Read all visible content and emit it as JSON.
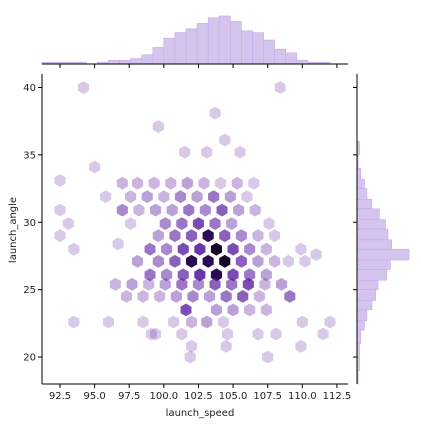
{
  "chart_data": {
    "type": "hexbin-jointplot",
    "xlabel": "launch_speed",
    "ylabel": "launch_angle",
    "xlim": [
      91.2,
      113.3
    ],
    "ylim": [
      18.0,
      41.0
    ],
    "xticks": [
      "92.5",
      "95.0",
      "97.5",
      "100.0",
      "102.5",
      "105.0",
      "107.5",
      "110.0",
      "112.5"
    ],
    "xtick_values": [
      92.5,
      95.0,
      97.5,
      100.0,
      102.5,
      105.0,
      107.5,
      110.0,
      112.5
    ],
    "yticks": [
      "20",
      "25",
      "30",
      "35",
      "40"
    ],
    "ytick_values": [
      20,
      25,
      30,
      35,
      40
    ],
    "colors": {
      "base": "#5a1fa0",
      "hist": "#d5c4ee",
      "hist_edge": "#c2acea",
      "axis": "#000000"
    },
    "hexbins": {
      "gridsize_x_step": 1.19,
      "row_step_y": 1.0,
      "max_count": 10,
      "cells": [
        [
          94.2,
          40.0,
          1
        ],
        [
          103.7,
          38.1,
          1
        ],
        [
          108.4,
          40.0,
          1
        ],
        [
          99.6,
          37.1,
          1
        ],
        [
          104.4,
          36.1,
          1
        ],
        [
          92.5,
          33.1,
          1
        ],
        [
          95.0,
          34.1,
          1
        ],
        [
          101.5,
          35.2,
          1
        ],
        [
          103.1,
          35.2,
          1
        ],
        [
          105.5,
          35.2,
          1
        ],
        [
          97.0,
          32.9,
          2
        ],
        [
          98.1,
          32.9,
          2
        ],
        [
          99.3,
          32.9,
          2
        ],
        [
          100.5,
          32.9,
          2
        ],
        [
          101.7,
          32.9,
          3
        ],
        [
          102.9,
          32.9,
          2
        ],
        [
          104.1,
          32.9,
          1
        ],
        [
          105.3,
          32.9,
          2
        ],
        [
          106.5,
          32.9,
          1
        ],
        [
          95.8,
          31.9,
          1
        ],
        [
          97.6,
          31.9,
          2
        ],
        [
          98.8,
          31.9,
          3
        ],
        [
          100.0,
          31.9,
          2
        ],
        [
          101.2,
          31.9,
          4
        ],
        [
          102.4,
          31.9,
          3
        ],
        [
          103.6,
          31.9,
          5
        ],
        [
          104.8,
          31.9,
          3
        ],
        [
          106.0,
          31.9,
          1
        ],
        [
          92.5,
          30.9,
          1
        ],
        [
          97.0,
          30.9,
          4
        ],
        [
          98.2,
          30.9,
          2
        ],
        [
          99.4,
          30.9,
          3
        ],
        [
          100.6,
          30.9,
          3
        ],
        [
          101.8,
          30.9,
          5
        ],
        [
          103.0,
          30.9,
          4
        ],
        [
          104.2,
          30.9,
          6
        ],
        [
          105.4,
          30.9,
          3
        ],
        [
          106.6,
          30.9,
          2
        ],
        [
          93.1,
          29.9,
          1
        ],
        [
          97.6,
          29.9,
          1
        ],
        [
          100.1,
          29.9,
          4
        ],
        [
          101.3,
          29.9,
          5
        ],
        [
          102.5,
          29.9,
          7
        ],
        [
          103.7,
          29.9,
          5
        ],
        [
          104.9,
          29.9,
          3
        ],
        [
          107.6,
          29.9,
          1
        ],
        [
          92.5,
          29.0,
          1
        ],
        [
          99.6,
          29.0,
          3
        ],
        [
          100.8,
          29.0,
          5
        ],
        [
          102.0,
          29.0,
          6
        ],
        [
          103.2,
          29.0,
          9
        ],
        [
          104.4,
          29.0,
          6
        ],
        [
          105.6,
          29.0,
          4
        ],
        [
          106.8,
          29.0,
          2
        ],
        [
          108.0,
          29.0,
          1
        ],
        [
          93.5,
          28.0,
          1
        ],
        [
          96.7,
          28.4,
          1
        ],
        [
          99.0,
          28.0,
          5
        ],
        [
          100.2,
          28.0,
          4
        ],
        [
          101.4,
          28.0,
          7
        ],
        [
          102.6,
          28.0,
          8
        ],
        [
          103.8,
          28.0,
          10
        ],
        [
          105.0,
          28.0,
          7
        ],
        [
          106.2,
          28.0,
          4
        ],
        [
          107.4,
          28.0,
          2
        ],
        [
          109.9,
          28.0,
          1
        ],
        [
          98.1,
          27.1,
          3
        ],
        [
          99.6,
          27.1,
          4
        ],
        [
          100.8,
          27.1,
          6
        ],
        [
          102.0,
          27.1,
          9
        ],
        [
          103.2,
          27.1,
          9
        ],
        [
          104.4,
          27.1,
          10
        ],
        [
          105.6,
          27.1,
          6
        ],
        [
          106.8,
          27.1,
          3
        ],
        [
          108.0,
          27.1,
          2
        ],
        [
          110.2,
          27.1,
          1
        ],
        [
          111.0,
          27.6,
          1
        ],
        [
          109.0,
          27.1,
          1
        ],
        [
          99.0,
          26.1,
          5
        ],
        [
          100.2,
          26.1,
          4
        ],
        [
          101.4,
          26.1,
          6
        ],
        [
          102.6,
          26.1,
          8
        ],
        [
          103.8,
          26.1,
          9
        ],
        [
          105.0,
          26.1,
          7
        ],
        [
          106.2,
          26.1,
          5
        ],
        [
          107.4,
          26.1,
          3
        ],
        [
          96.5,
          25.4,
          2
        ],
        [
          97.7,
          25.4,
          3
        ],
        [
          98.9,
          25.4,
          2
        ],
        [
          100.1,
          25.4,
          3
        ],
        [
          101.3,
          25.4,
          5
        ],
        [
          102.5,
          25.4,
          4
        ],
        [
          103.7,
          25.4,
          6
        ],
        [
          104.9,
          25.4,
          5
        ],
        [
          106.1,
          25.4,
          7
        ],
        [
          107.3,
          25.4,
          2
        ],
        [
          108.5,
          25.4,
          3
        ],
        [
          97.3,
          24.5,
          2
        ],
        [
          98.5,
          24.5,
          2
        ],
        [
          99.7,
          24.5,
          2
        ],
        [
          100.9,
          24.5,
          3
        ],
        [
          102.1,
          24.5,
          4
        ],
        [
          103.3,
          24.5,
          3
        ],
        [
          104.5,
          24.5,
          5
        ],
        [
          105.7,
          24.5,
          6
        ],
        [
          106.9,
          24.5,
          2
        ],
        [
          109.1,
          24.5,
          5
        ],
        [
          101.6,
          23.5,
          7
        ],
        [
          103.8,
          23.5,
          3
        ],
        [
          105.0,
          23.5,
          3
        ],
        [
          106.2,
          23.5,
          2
        ],
        [
          107.4,
          23.5,
          2
        ],
        [
          100.7,
          22.6,
          1
        ],
        [
          102.0,
          22.6,
          2
        ],
        [
          103.1,
          22.6,
          3
        ],
        [
          104.3,
          22.6,
          1
        ],
        [
          93.5,
          22.6,
          1
        ],
        [
          96.0,
          22.6,
          1
        ],
        [
          98.5,
          22.6,
          1
        ],
        [
          110.0,
          22.6,
          1
        ],
        [
          112.0,
          22.6,
          1
        ],
        [
          99.1,
          21.7,
          1
        ],
        [
          101.3,
          21.7,
          1
        ],
        [
          104.6,
          21.7,
          1
        ],
        [
          106.8,
          21.7,
          1
        ],
        [
          108.1,
          21.7,
          1
        ],
        [
          111.5,
          21.7,
          1
        ],
        [
          102.0,
          20.8,
          1
        ],
        [
          104.5,
          20.8,
          1
        ],
        [
          107.5,
          20.0,
          1
        ],
        [
          109.9,
          20.8,
          1
        ],
        [
          101.9,
          20.0,
          1
        ],
        [
          99.4,
          21.7,
          1
        ]
      ]
    },
    "x_marginal": {
      "bin_edges": [
        91.2,
        92.0,
        92.8,
        93.6,
        94.4,
        95.2,
        96.0,
        96.8,
        97.6,
        98.4,
        99.2,
        100.0,
        100.8,
        101.6,
        102.4,
        103.2,
        104.0,
        104.8,
        105.6,
        106.4,
        107.2,
        108.0,
        108.8,
        109.6,
        110.4,
        111.2,
        112.0,
        112.8
      ],
      "counts": [
        1,
        1,
        1,
        1,
        0,
        1,
        2,
        2,
        3,
        5,
        9,
        14,
        17,
        19,
        22,
        25,
        26,
        23,
        18,
        17,
        13,
        8,
        6,
        2,
        1,
        1,
        0
      ]
    },
    "y_marginal": {
      "bin_edges": [
        18.0,
        19.0,
        20.0,
        21.0,
        22.0,
        22.7,
        23.5,
        24.2,
        25.0,
        25.7,
        26.5,
        27.2,
        28.0,
        28.7,
        29.5,
        30.2,
        31.0,
        31.7,
        32.5,
        33.2,
        34.0,
        35.0,
        36.0
      ],
      "counts": [
        1,
        2,
        2,
        3,
        6,
        8,
        12,
        15,
        17,
        24,
        27,
        42,
        28,
        25,
        23,
        18,
        12,
        8,
        6,
        3,
        1,
        2
      ]
    }
  }
}
